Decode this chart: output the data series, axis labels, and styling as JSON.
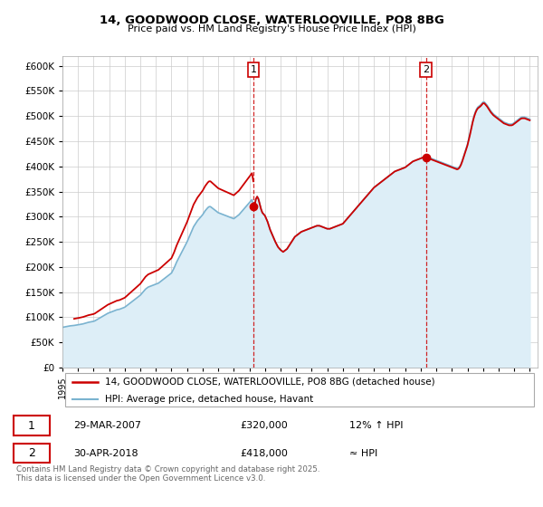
{
  "title_line1": "14, GOODWOOD CLOSE, WATERLOOVILLE, PO8 8BG",
  "title_line2": "Price paid vs. HM Land Registry's House Price Index (HPI)",
  "ytick_values": [
    0,
    50000,
    100000,
    150000,
    200000,
    250000,
    300000,
    350000,
    400000,
    450000,
    500000,
    550000,
    600000
  ],
  "xlim": [
    1995.0,
    2025.5
  ],
  "ylim": [
    0,
    620000
  ],
  "xtick_years": [
    1995,
    1996,
    1997,
    1998,
    1999,
    2000,
    2001,
    2002,
    2003,
    2004,
    2005,
    2006,
    2007,
    2008,
    2009,
    2010,
    2011,
    2012,
    2013,
    2014,
    2015,
    2016,
    2017,
    2018,
    2019,
    2020,
    2021,
    2022,
    2023,
    2024,
    2025
  ],
  "marker1_x": 2007.25,
  "marker1_label": "1",
  "marker1_date": "29-MAR-2007",
  "marker1_price": "£320,000",
  "marker1_hpi": "12% ↑ HPI",
  "marker2_x": 2018.33,
  "marker2_label": "2",
  "marker2_date": "30-APR-2018",
  "marker2_price": "£418,000",
  "marker2_hpi": "≈ HPI",
  "color_red": "#cc0000",
  "color_blue": "#7ab3d0",
  "color_fill": "#ddeef7",
  "grid_color": "#cccccc",
  "legend_label_red": "14, GOODWOOD CLOSE, WATERLOOVILLE, PO8 8BG (detached house)",
  "legend_label_blue": "HPI: Average price, detached house, Havant",
  "footnote": "Contains HM Land Registry data © Crown copyright and database right 2025.\nThis data is licensed under the Open Government Licence v3.0.",
  "hpi_monthly": {
    "years": [
      1995.0,
      1995.083,
      1995.167,
      1995.25,
      1995.333,
      1995.417,
      1995.5,
      1995.583,
      1995.667,
      1995.75,
      1995.833,
      1995.917,
      1996.0,
      1996.083,
      1996.167,
      1996.25,
      1996.333,
      1996.417,
      1996.5,
      1996.583,
      1996.667,
      1996.75,
      1996.833,
      1996.917,
      1997.0,
      1997.083,
      1997.167,
      1997.25,
      1997.333,
      1997.417,
      1997.5,
      1997.583,
      1997.667,
      1997.75,
      1997.833,
      1997.917,
      1998.0,
      1998.083,
      1998.167,
      1998.25,
      1998.333,
      1998.417,
      1998.5,
      1998.583,
      1998.667,
      1998.75,
      1998.833,
      1998.917,
      1999.0,
      1999.083,
      1999.167,
      1999.25,
      1999.333,
      1999.417,
      1999.5,
      1999.583,
      1999.667,
      1999.75,
      1999.833,
      1999.917,
      2000.0,
      2000.083,
      2000.167,
      2000.25,
      2000.333,
      2000.417,
      2000.5,
      2000.583,
      2000.667,
      2000.75,
      2000.833,
      2000.917,
      2001.0,
      2001.083,
      2001.167,
      2001.25,
      2001.333,
      2001.417,
      2001.5,
      2001.583,
      2001.667,
      2001.75,
      2001.833,
      2001.917,
      2002.0,
      2002.083,
      2002.167,
      2002.25,
      2002.333,
      2002.417,
      2002.5,
      2002.583,
      2002.667,
      2002.75,
      2002.833,
      2002.917,
      2003.0,
      2003.083,
      2003.167,
      2003.25,
      2003.333,
      2003.417,
      2003.5,
      2003.583,
      2003.667,
      2003.75,
      2003.833,
      2003.917,
      2004.0,
      2004.083,
      2004.167,
      2004.25,
      2004.333,
      2004.417,
      2004.5,
      2004.583,
      2004.667,
      2004.75,
      2004.833,
      2004.917,
      2005.0,
      2005.083,
      2005.167,
      2005.25,
      2005.333,
      2005.417,
      2005.5,
      2005.583,
      2005.667,
      2005.75,
      2005.833,
      2005.917,
      2006.0,
      2006.083,
      2006.167,
      2006.25,
      2006.333,
      2006.417,
      2006.5,
      2006.583,
      2006.667,
      2006.75,
      2006.833,
      2006.917,
      2007.0,
      2007.083,
      2007.167,
      2007.25,
      2007.333,
      2007.417,
      2007.5,
      2007.583,
      2007.667,
      2007.75,
      2007.833,
      2007.917,
      2008.0,
      2008.083,
      2008.167,
      2008.25,
      2008.333,
      2008.417,
      2008.5,
      2008.583,
      2008.667,
      2008.75,
      2008.833,
      2008.917,
      2009.0,
      2009.083,
      2009.167,
      2009.25,
      2009.333,
      2009.417,
      2009.5,
      2009.583,
      2009.667,
      2009.75,
      2009.833,
      2009.917,
      2010.0,
      2010.083,
      2010.167,
      2010.25,
      2010.333,
      2010.417,
      2010.5,
      2010.583,
      2010.667,
      2010.75,
      2010.833,
      2010.917,
      2011.0,
      2011.083,
      2011.167,
      2011.25,
      2011.333,
      2011.417,
      2011.5,
      2011.583,
      2011.667,
      2011.75,
      2011.833,
      2011.917,
      2012.0,
      2012.083,
      2012.167,
      2012.25,
      2012.333,
      2012.417,
      2012.5,
      2012.583,
      2012.667,
      2012.75,
      2012.833,
      2012.917,
      2013.0,
      2013.083,
      2013.167,
      2013.25,
      2013.333,
      2013.417,
      2013.5,
      2013.583,
      2013.667,
      2013.75,
      2013.833,
      2013.917,
      2014.0,
      2014.083,
      2014.167,
      2014.25,
      2014.333,
      2014.417,
      2014.5,
      2014.583,
      2014.667,
      2014.75,
      2014.833,
      2014.917,
      2015.0,
      2015.083,
      2015.167,
      2015.25,
      2015.333,
      2015.417,
      2015.5,
      2015.583,
      2015.667,
      2015.75,
      2015.833,
      2015.917,
      2016.0,
      2016.083,
      2016.167,
      2016.25,
      2016.333,
      2016.417,
      2016.5,
      2016.583,
      2016.667,
      2016.75,
      2016.833,
      2016.917,
      2017.0,
      2017.083,
      2017.167,
      2017.25,
      2017.333,
      2017.417,
      2017.5,
      2017.583,
      2017.667,
      2017.75,
      2017.833,
      2017.917,
      2018.0,
      2018.083,
      2018.167,
      2018.25,
      2018.333,
      2018.417,
      2018.5,
      2018.583,
      2018.667,
      2018.75,
      2018.833,
      2018.917,
      2019.0,
      2019.083,
      2019.167,
      2019.25,
      2019.333,
      2019.417,
      2019.5,
      2019.583,
      2019.667,
      2019.75,
      2019.833,
      2019.917,
      2020.0,
      2020.083,
      2020.167,
      2020.25,
      2020.333,
      2020.417,
      2020.5,
      2020.583,
      2020.667,
      2020.75,
      2020.833,
      2020.917,
      2021.0,
      2021.083,
      2021.167,
      2021.25,
      2021.333,
      2021.417,
      2021.5,
      2021.583,
      2021.667,
      2021.75,
      2021.833,
      2021.917,
      2022.0,
      2022.083,
      2022.167,
      2022.25,
      2022.333,
      2022.417,
      2022.5,
      2022.583,
      2022.667,
      2022.75,
      2022.833,
      2022.917,
      2023.0,
      2023.083,
      2023.167,
      2023.25,
      2023.333,
      2023.417,
      2023.5,
      2023.583,
      2023.667,
      2023.75,
      2023.833,
      2023.917,
      2024.0,
      2024.083,
      2024.167,
      2024.25,
      2024.333,
      2024.417,
      2024.5,
      2024.583,
      2024.667,
      2024.75,
      2024.833,
      2024.917,
      2025.0
    ],
    "values": [
      80000,
      80500,
      81000,
      81500,
      82000,
      82500,
      83000,
      83200,
      83500,
      83800,
      84200,
      84600,
      85000,
      85500,
      86000,
      86500,
      87000,
      87800,
      88500,
      89200,
      90000,
      90500,
      91000,
      91500,
      92000,
      93000,
      94500,
      96000,
      97500,
      99000,
      100500,
      102000,
      103500,
      105000,
      106500,
      108000,
      109000,
      110000,
      111000,
      112000,
      113000,
      114000,
      115000,
      115500,
      116000,
      117000,
      118000,
      119000,
      120000,
      122000,
      124000,
      126000,
      128000,
      130000,
      132000,
      134000,
      136000,
      138000,
      140000,
      142000,
      144000,
      147000,
      150000,
      153000,
      156000,
      158000,
      160000,
      161000,
      162000,
      163000,
      164000,
      165000,
      166000,
      167000,
      168000,
      170000,
      172000,
      174000,
      176000,
      178000,
      180000,
      182000,
      184000,
      186000,
      188000,
      193000,
      198000,
      204000,
      210000,
      215000,
      220000,
      225000,
      230000,
      235000,
      240000,
      245000,
      250000,
      256000,
      262000,
      268000,
      274000,
      280000,
      284000,
      288000,
      292000,
      295000,
      298000,
      301000,
      304000,
      308000,
      312000,
      315000,
      318000,
      320000,
      320000,
      318000,
      316000,
      314000,
      312000,
      310000,
      308000,
      307000,
      306000,
      305000,
      304000,
      303000,
      302000,
      301000,
      300000,
      299000,
      298000,
      297000,
      296000,
      298000,
      300000,
      302000,
      304000,
      307000,
      310000,
      313000,
      316000,
      319000,
      322000,
      325000,
      328000,
      331000,
      334000,
      320000,
      322000,
      335000,
      340000,
      335000,
      325000,
      315000,
      308000,
      305000,
      302000,
      296000,
      290000,
      282000,
      274000,
      268000,
      262000,
      256000,
      250000,
      245000,
      240000,
      237000,
      234000,
      232000,
      230000,
      232000,
      234000,
      236000,
      240000,
      244000,
      248000,
      252000,
      256000,
      260000,
      262000,
      264000,
      266000,
      268000,
      270000,
      271000,
      272000,
      273000,
      274000,
      275000,
      276000,
      277000,
      278000,
      279000,
      280000,
      281000,
      282000,
      282000,
      282000,
      281000,
      280000,
      279000,
      278000,
      277000,
      276000,
      276000,
      276000,
      277000,
      278000,
      279000,
      280000,
      281000,
      282000,
      283000,
      284000,
      285000,
      286000,
      289000,
      292000,
      295000,
      298000,
      301000,
      304000,
      307000,
      310000,
      313000,
      316000,
      319000,
      322000,
      325000,
      328000,
      331000,
      334000,
      337000,
      340000,
      343000,
      346000,
      349000,
      352000,
      355000,
      358000,
      360000,
      362000,
      364000,
      366000,
      368000,
      370000,
      372000,
      374000,
      376000,
      378000,
      380000,
      382000,
      384000,
      386000,
      388000,
      390000,
      391000,
      392000,
      393000,
      394000,
      395000,
      396000,
      397000,
      398000,
      400000,
      402000,
      404000,
      406000,
      408000,
      410000,
      411000,
      412000,
      413000,
      414000,
      415000,
      416000,
      417000,
      418000,
      419000,
      420000,
      419000,
      418000,
      417000,
      416000,
      415000,
      414000,
      413000,
      412000,
      411000,
      410000,
      409000,
      408000,
      407000,
      406000,
      405000,
      404000,
      403000,
      402000,
      401000,
      400000,
      399000,
      398000,
      397000,
      396000,
      397000,
      400000,
      405000,
      412000,
      420000,
      428000,
      436000,
      444000,
      455000,
      466000,
      478000,
      490000,
      500000,
      508000,
      514000,
      518000,
      520000,
      522000,
      525000,
      528000,
      528000,
      525000,
      522000,
      518000,
      514000,
      510000,
      507000,
      504000,
      502000,
      500000,
      498000,
      496000,
      494000,
      492000,
      490000,
      488000,
      487000,
      486000,
      485000,
      484000,
      484000,
      484000,
      485000,
      487000,
      489000,
      491000,
      493000,
      495000,
      497000,
      498000,
      498000,
      498000,
      497000,
      496000,
      495000,
      494000
    ]
  },
  "house_purchase1_year": 1995.75,
  "house_purchase1_price": 97000,
  "house_purchase2_year": 2007.25,
  "house_purchase2_price": 320000,
  "house_purchase3_year": 2018.333,
  "house_purchase3_price": 418000
}
